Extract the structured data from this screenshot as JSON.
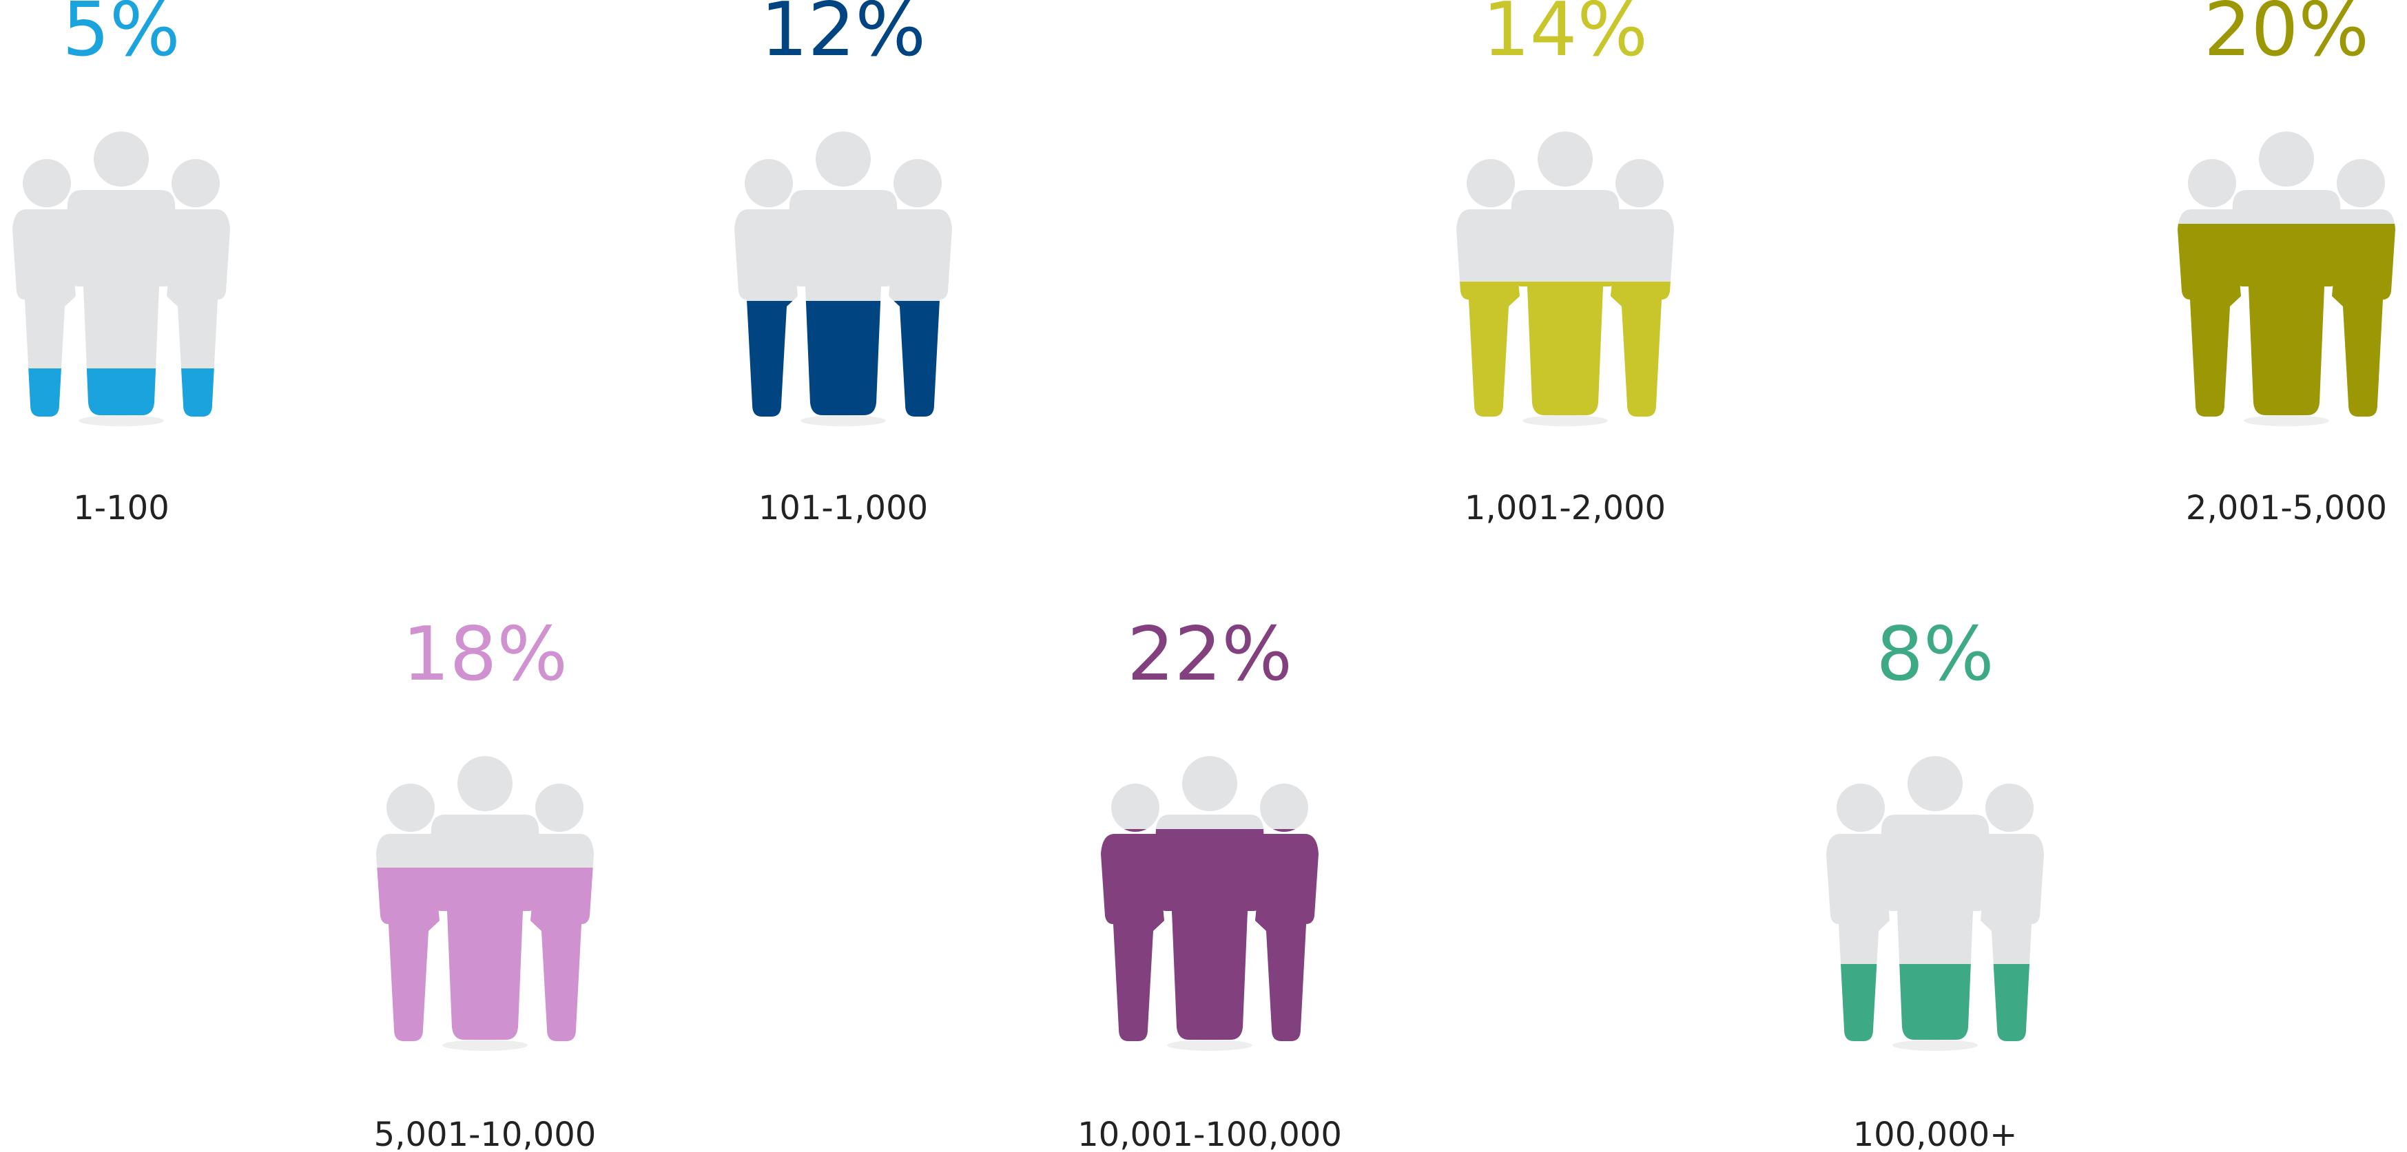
{
  "chart_data": {
    "type": "icon-array",
    "title": "",
    "max_percent": 25,
    "items": [
      {
        "percent_label": "5%",
        "value": 5,
        "category": "1-100",
        "color": "#1aa3dc"
      },
      {
        "percent_label": "12%",
        "value": 12,
        "category": "101-1,000",
        "color": "#004482"
      },
      {
        "percent_label": "14%",
        "value": 14,
        "category": "1,001-2,000",
        "color": "#c8c62a"
      },
      {
        "percent_label": "20%",
        "value": 20,
        "category": "2,001-5,000",
        "color": "#9c9704"
      },
      {
        "percent_label": "18%",
        "value": 18,
        "category": "5,001-10,000",
        "color": "#cf91cf"
      },
      {
        "percent_label": "22%",
        "value": 22,
        "category": "10,001-100,000",
        "color": "#82407e"
      },
      {
        "percent_label": "8%",
        "value": 8,
        "category": "100,000+",
        "color": "#3da985"
      }
    ]
  }
}
